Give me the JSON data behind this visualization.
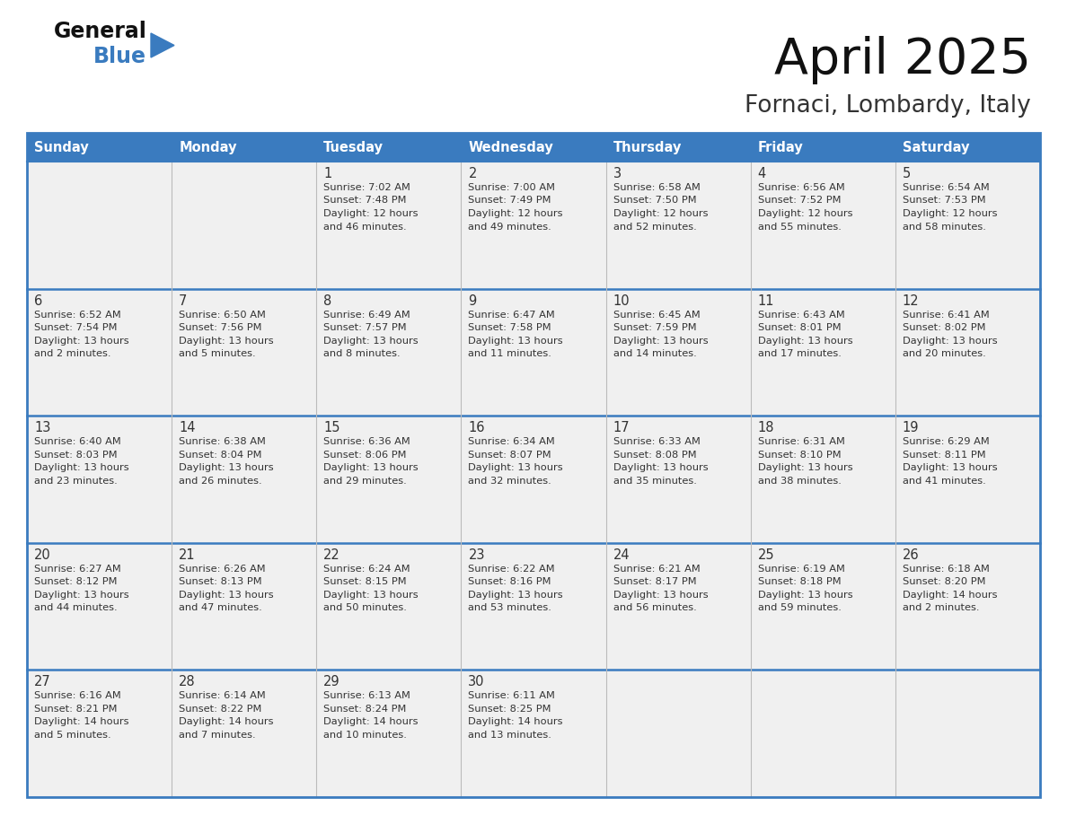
{
  "title": "April 2025",
  "subtitle": "Fornaci, Lombardy, Italy",
  "header_bg": "#3a7bbf",
  "header_text": "#ffffff",
  "cell_bg_light": "#f0f0f0",
  "row_sep_color": "#3a7bbf",
  "text_color": "#333333",
  "days_of_week": [
    "Sunday",
    "Monday",
    "Tuesday",
    "Wednesday",
    "Thursday",
    "Friday",
    "Saturday"
  ],
  "weeks": [
    [
      {
        "day": "",
        "info": ""
      },
      {
        "day": "",
        "info": ""
      },
      {
        "day": "1",
        "info": "Sunrise: 7:02 AM\nSunset: 7:48 PM\nDaylight: 12 hours\nand 46 minutes."
      },
      {
        "day": "2",
        "info": "Sunrise: 7:00 AM\nSunset: 7:49 PM\nDaylight: 12 hours\nand 49 minutes."
      },
      {
        "day": "3",
        "info": "Sunrise: 6:58 AM\nSunset: 7:50 PM\nDaylight: 12 hours\nand 52 minutes."
      },
      {
        "day": "4",
        "info": "Sunrise: 6:56 AM\nSunset: 7:52 PM\nDaylight: 12 hours\nand 55 minutes."
      },
      {
        "day": "5",
        "info": "Sunrise: 6:54 AM\nSunset: 7:53 PM\nDaylight: 12 hours\nand 58 minutes."
      }
    ],
    [
      {
        "day": "6",
        "info": "Sunrise: 6:52 AM\nSunset: 7:54 PM\nDaylight: 13 hours\nand 2 minutes."
      },
      {
        "day": "7",
        "info": "Sunrise: 6:50 AM\nSunset: 7:56 PM\nDaylight: 13 hours\nand 5 minutes."
      },
      {
        "day": "8",
        "info": "Sunrise: 6:49 AM\nSunset: 7:57 PM\nDaylight: 13 hours\nand 8 minutes."
      },
      {
        "day": "9",
        "info": "Sunrise: 6:47 AM\nSunset: 7:58 PM\nDaylight: 13 hours\nand 11 minutes."
      },
      {
        "day": "10",
        "info": "Sunrise: 6:45 AM\nSunset: 7:59 PM\nDaylight: 13 hours\nand 14 minutes."
      },
      {
        "day": "11",
        "info": "Sunrise: 6:43 AM\nSunset: 8:01 PM\nDaylight: 13 hours\nand 17 minutes."
      },
      {
        "day": "12",
        "info": "Sunrise: 6:41 AM\nSunset: 8:02 PM\nDaylight: 13 hours\nand 20 minutes."
      }
    ],
    [
      {
        "day": "13",
        "info": "Sunrise: 6:40 AM\nSunset: 8:03 PM\nDaylight: 13 hours\nand 23 minutes."
      },
      {
        "day": "14",
        "info": "Sunrise: 6:38 AM\nSunset: 8:04 PM\nDaylight: 13 hours\nand 26 minutes."
      },
      {
        "day": "15",
        "info": "Sunrise: 6:36 AM\nSunset: 8:06 PM\nDaylight: 13 hours\nand 29 minutes."
      },
      {
        "day": "16",
        "info": "Sunrise: 6:34 AM\nSunset: 8:07 PM\nDaylight: 13 hours\nand 32 minutes."
      },
      {
        "day": "17",
        "info": "Sunrise: 6:33 AM\nSunset: 8:08 PM\nDaylight: 13 hours\nand 35 minutes."
      },
      {
        "day": "18",
        "info": "Sunrise: 6:31 AM\nSunset: 8:10 PM\nDaylight: 13 hours\nand 38 minutes."
      },
      {
        "day": "19",
        "info": "Sunrise: 6:29 AM\nSunset: 8:11 PM\nDaylight: 13 hours\nand 41 minutes."
      }
    ],
    [
      {
        "day": "20",
        "info": "Sunrise: 6:27 AM\nSunset: 8:12 PM\nDaylight: 13 hours\nand 44 minutes."
      },
      {
        "day": "21",
        "info": "Sunrise: 6:26 AM\nSunset: 8:13 PM\nDaylight: 13 hours\nand 47 minutes."
      },
      {
        "day": "22",
        "info": "Sunrise: 6:24 AM\nSunset: 8:15 PM\nDaylight: 13 hours\nand 50 minutes."
      },
      {
        "day": "23",
        "info": "Sunrise: 6:22 AM\nSunset: 8:16 PM\nDaylight: 13 hours\nand 53 minutes."
      },
      {
        "day": "24",
        "info": "Sunrise: 6:21 AM\nSunset: 8:17 PM\nDaylight: 13 hours\nand 56 minutes."
      },
      {
        "day": "25",
        "info": "Sunrise: 6:19 AM\nSunset: 8:18 PM\nDaylight: 13 hours\nand 59 minutes."
      },
      {
        "day": "26",
        "info": "Sunrise: 6:18 AM\nSunset: 8:20 PM\nDaylight: 14 hours\nand 2 minutes."
      }
    ],
    [
      {
        "day": "27",
        "info": "Sunrise: 6:16 AM\nSunset: 8:21 PM\nDaylight: 14 hours\nand 5 minutes."
      },
      {
        "day": "28",
        "info": "Sunrise: 6:14 AM\nSunset: 8:22 PM\nDaylight: 14 hours\nand 7 minutes."
      },
      {
        "day": "29",
        "info": "Sunrise: 6:13 AM\nSunset: 8:24 PM\nDaylight: 14 hours\nand 10 minutes."
      },
      {
        "day": "30",
        "info": "Sunrise: 6:11 AM\nSunset: 8:25 PM\nDaylight: 14 hours\nand 13 minutes."
      },
      {
        "day": "",
        "info": ""
      },
      {
        "day": "",
        "info": ""
      },
      {
        "day": "",
        "info": ""
      }
    ]
  ],
  "logo_text_general": "General",
  "logo_text_blue": "Blue",
  "logo_color_general": "#111111",
  "logo_color_blue": "#3a7bbf",
  "logo_triangle_color": "#3a7bbf"
}
